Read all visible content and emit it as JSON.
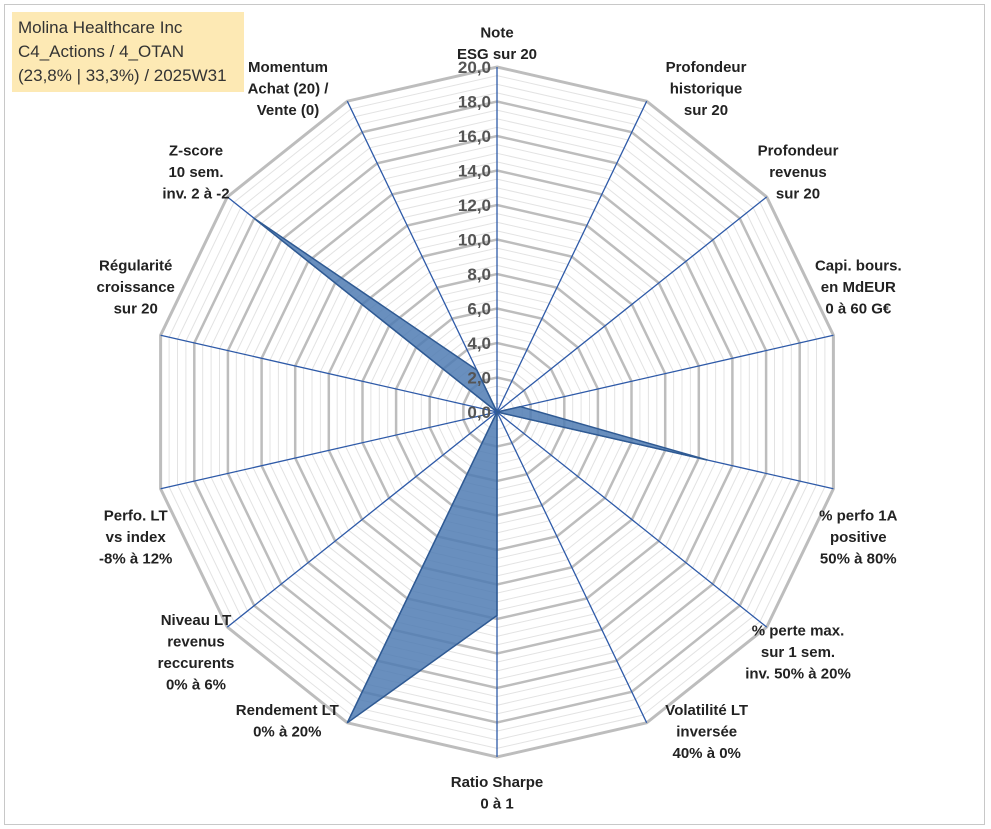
{
  "header": {
    "title_lines": [
      "Molina Healthcare Inc",
      "C4_Actions / 4_OTAN",
      "(23,8% | 33,3%) / 2025W31"
    ]
  },
  "colors": {
    "fill": "#4f7bb3",
    "stroke": "#2f5a93",
    "major_grid": "#bdbdbd",
    "minor_grid": "#e3e3e3",
    "spoke": "#2e5aa8",
    "title_bg": "#fde9b4"
  },
  "chart_data": {
    "type": "radar",
    "rlim": [
      0,
      20
    ],
    "ticks": [
      "0,0",
      "2,0",
      "4,0",
      "6,0",
      "8,0",
      "10,0",
      "12,0",
      "14,0",
      "16,0",
      "18,0",
      "20,0"
    ],
    "categories": [
      {
        "lines": [
          "Note",
          "ESG sur 20"
        ],
        "value": 0
      },
      {
        "lines": [
          "Profondeur",
          "historique",
          "sur 20"
        ],
        "value": 0
      },
      {
        "lines": [
          "Profondeur",
          "revenus",
          "sur 20"
        ],
        "value": 0
      },
      {
        "lines": [
          "Capi. bours.",
          "en MdEUR",
          "0 à 60 G€"
        ],
        "value": 1.4
      },
      {
        "lines": [
          "% perfo 1A",
          "positive",
          "50% à 80%"
        ],
        "value": 12.5
      },
      {
        "lines": [
          "% perte max.",
          "sur 1 sem.",
          "inv. 50% à 20%"
        ],
        "value": 0
      },
      {
        "lines": [
          "Volatilité LT",
          "inversée",
          "40% à 0%"
        ],
        "value": 0
      },
      {
        "lines": [
          "Ratio Sharpe",
          "0 à 1"
        ],
        "value": 11.8
      },
      {
        "lines": [
          "Rendement LT",
          "0% à 20%"
        ],
        "value": 20
      },
      {
        "lines": [
          "Niveau LT",
          "revenus",
          "reccurents",
          "0% à 6%"
        ],
        "value": 0
      },
      {
        "lines": [
          "Perfo. LT",
          "vs index",
          "-8% à 12%"
        ],
        "value": 0
      },
      {
        "lines": [
          "Régularité",
          "croissance",
          "sur 20"
        ],
        "value": 0
      },
      {
        "lines": [
          "Z-score",
          "10 sem.",
          "inv. 2 à -2"
        ],
        "value": 18
      },
      {
        "lines": [
          "Momentum",
          "Achat (20) /",
          "Vente (0)"
        ],
        "value": 2.7
      }
    ]
  }
}
